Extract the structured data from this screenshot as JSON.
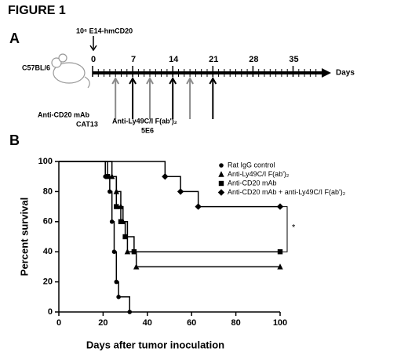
{
  "figure_title": "FIGURE 1",
  "panel_a": {
    "label": "A",
    "mouse_label": "C57BL/6",
    "tumor_label": "10⁶ E14-hmCD20",
    "xlim": [
      0,
      40
    ],
    "ticks": [
      0,
      7,
      14,
      21,
      28,
      35
    ],
    "axis_label": "Days",
    "treatments": [
      {
        "name": "Anti-CD20 mAb",
        "clone": "CAT13",
        "color": "#8a8a8a",
        "days": [
          4,
          10,
          17
        ]
      },
      {
        "name": "Anti-Ly49C/I F(ab')₂",
        "clone": "5E6",
        "color": "#000000",
        "days": [
          7,
          14,
          21
        ]
      }
    ]
  },
  "panel_b": {
    "label": "B"
  },
  "chart_data": {
    "type": "step",
    "xlabel": "Days after tumor inoculation",
    "ylabel": "Percent survival",
    "xlim": [
      0,
      100
    ],
    "xticks": [
      0,
      20,
      40,
      60,
      80,
      100
    ],
    "ylim": [
      0,
      100
    ],
    "yticks": [
      0,
      20,
      40,
      60,
      80,
      100
    ],
    "legend": "upper right",
    "annotations": [
      "*"
    ],
    "series": [
      {
        "name": "Rat IgG control",
        "marker": "circle",
        "color": "#000000",
        "x": [
          0,
          21,
          23,
          24,
          25,
          26,
          27,
          32
        ],
        "values": [
          100,
          90,
          80,
          60,
          40,
          20,
          10,
          0
        ]
      },
      {
        "name": "Anti-Ly49C/I F(ab')₂",
        "marker": "triangle",
        "color": "#000000",
        "x": [
          0,
          24,
          26,
          28,
          29,
          31,
          35,
          100
        ],
        "values": [
          100,
          90,
          80,
          70,
          60,
          40,
          30,
          30
        ]
      },
      {
        "name": "Anti-CD20 mAb",
        "marker": "square",
        "color": "#000000",
        "x": [
          0,
          22,
          26,
          28,
          30,
          34,
          100
        ],
        "values": [
          100,
          90,
          70,
          60,
          50,
          40,
          40
        ]
      },
      {
        "name": "Anti-CD20 mAb + anti-Ly49C/I F(ab')₂",
        "marker": "diamond",
        "color": "#000000",
        "x": [
          0,
          48,
          55,
          63,
          100
        ],
        "values": [
          100,
          90,
          80,
          70,
          70
        ]
      }
    ]
  }
}
